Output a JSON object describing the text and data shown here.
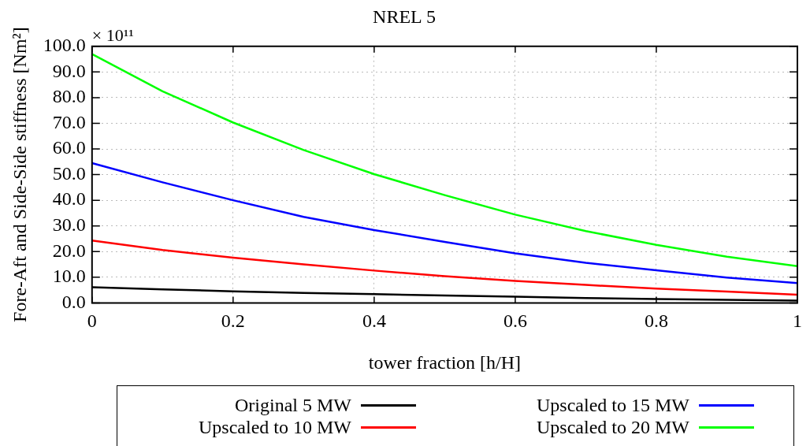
{
  "chart_data": {
    "type": "line",
    "title": "NREL 5",
    "xlabel": "tower fraction [h/H]",
    "ylabel": "Fore-Aft and Side-Side stiffness [Nm²]",
    "annotations": [
      "× 10¹¹"
    ],
    "x": [
      0,
      0.1,
      0.2,
      0.3,
      0.4,
      0.5,
      0.6,
      0.7,
      0.8,
      0.9,
      1.0
    ],
    "series": [
      {
        "name": "Original 5 MW",
        "color": "#000000",
        "values": [
          6.1,
          5.3,
          4.5,
          3.9,
          3.4,
          2.9,
          2.4,
          1.9,
          1.5,
          1.2,
          0.9
        ]
      },
      {
        "name": "Upscaled to 10 MW",
        "color": "#ff0000",
        "values": [
          24.3,
          20.6,
          17.6,
          15.0,
          12.6,
          10.4,
          8.6,
          7.0,
          5.6,
          4.4,
          3.2
        ]
      },
      {
        "name": "Upscaled to 15 MW",
        "color": "#0000ff",
        "values": [
          54.5,
          47.0,
          40.0,
          33.5,
          28.4,
          23.8,
          19.3,
          15.6,
          12.7,
          9.9,
          7.7
        ]
      },
      {
        "name": "Upscaled to 20 MW",
        "color": "#00ff00",
        "values": [
          97.0,
          82.5,
          70.3,
          59.6,
          50.2,
          42.0,
          34.4,
          28.0,
          22.6,
          18.0,
          14.3
        ]
      }
    ],
    "xlim": [
      0,
      1
    ],
    "xticks": [
      0,
      0.2,
      0.4,
      0.6,
      0.8,
      1
    ],
    "ylim": [
      0,
      100
    ],
    "yticks": [
      {
        "value": 0,
        "label": "0.0"
      },
      {
        "value": 10,
        "label": "10.0"
      },
      {
        "value": 20,
        "label": "20.0"
      },
      {
        "value": 30,
        "label": "30.0"
      },
      {
        "value": 40,
        "label": "40.0"
      },
      {
        "value": 50,
        "label": "50.0"
      },
      {
        "value": 60,
        "label": "60.0"
      },
      {
        "value": 70,
        "label": "70.0"
      },
      {
        "value": 80,
        "label": "80.0"
      },
      {
        "value": 90,
        "label": "90.0"
      },
      {
        "value": 100,
        "label": "100.0"
      }
    ],
    "grid": true,
    "legend": "bottom",
    "marker": "none",
    "line_style": "solid"
  }
}
